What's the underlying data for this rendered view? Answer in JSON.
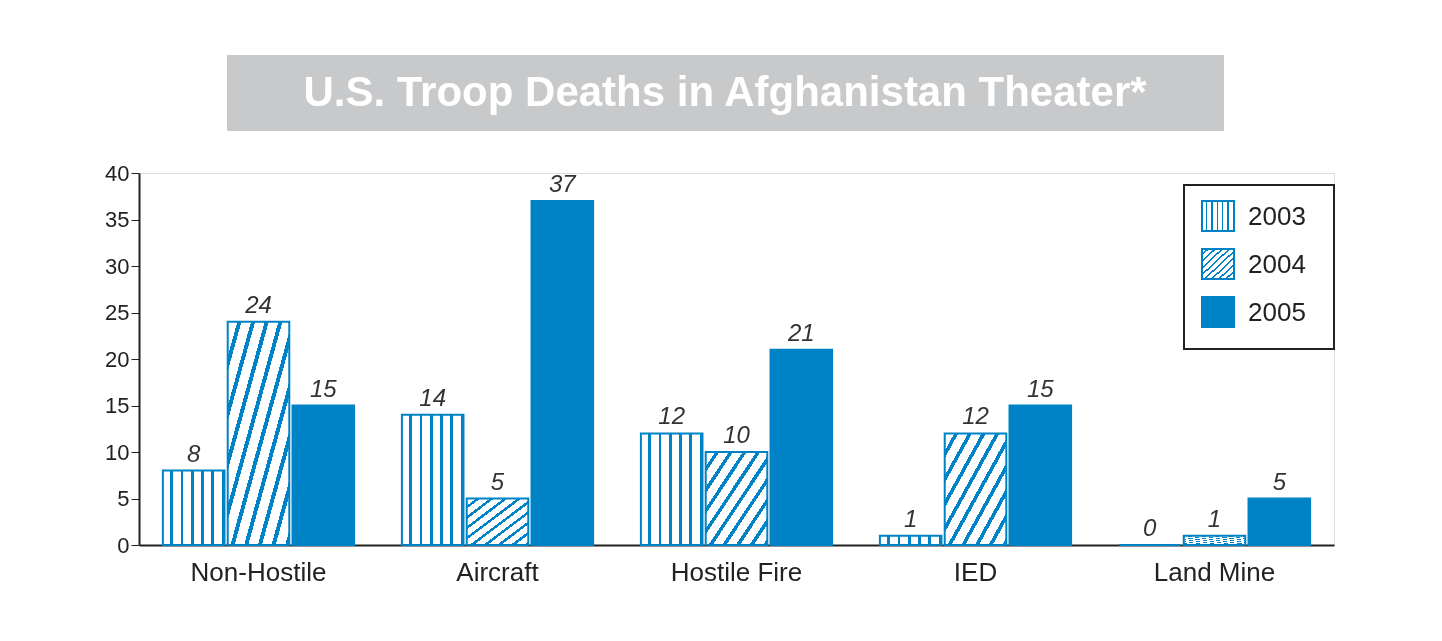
{
  "chart_data": {
    "type": "bar",
    "title": "U.S. Troop Deaths in Afghanistan Theater*",
    "categories": [
      "Non-Hostile",
      "Aircraft",
      "Hostile Fire",
      "IED",
      "Land Mine"
    ],
    "series": [
      {
        "name": "2003",
        "color": "#0083c6",
        "values": [
          8,
          14,
          12,
          1,
          0
        ]
      },
      {
        "name": "2004",
        "color": "#0083c6",
        "values": [
          24,
          5,
          10,
          12,
          1
        ]
      },
      {
        "name": "2005",
        "color": "#0083c6",
        "values": [
          15,
          37,
          21,
          15,
          5
        ]
      }
    ],
    "ylim": [
      0,
      40
    ],
    "yticks": [
      0,
      5,
      10,
      15,
      20,
      25,
      30,
      35,
      40
    ],
    "grid": false,
    "legend": "top right",
    "data_labels": true
  }
}
